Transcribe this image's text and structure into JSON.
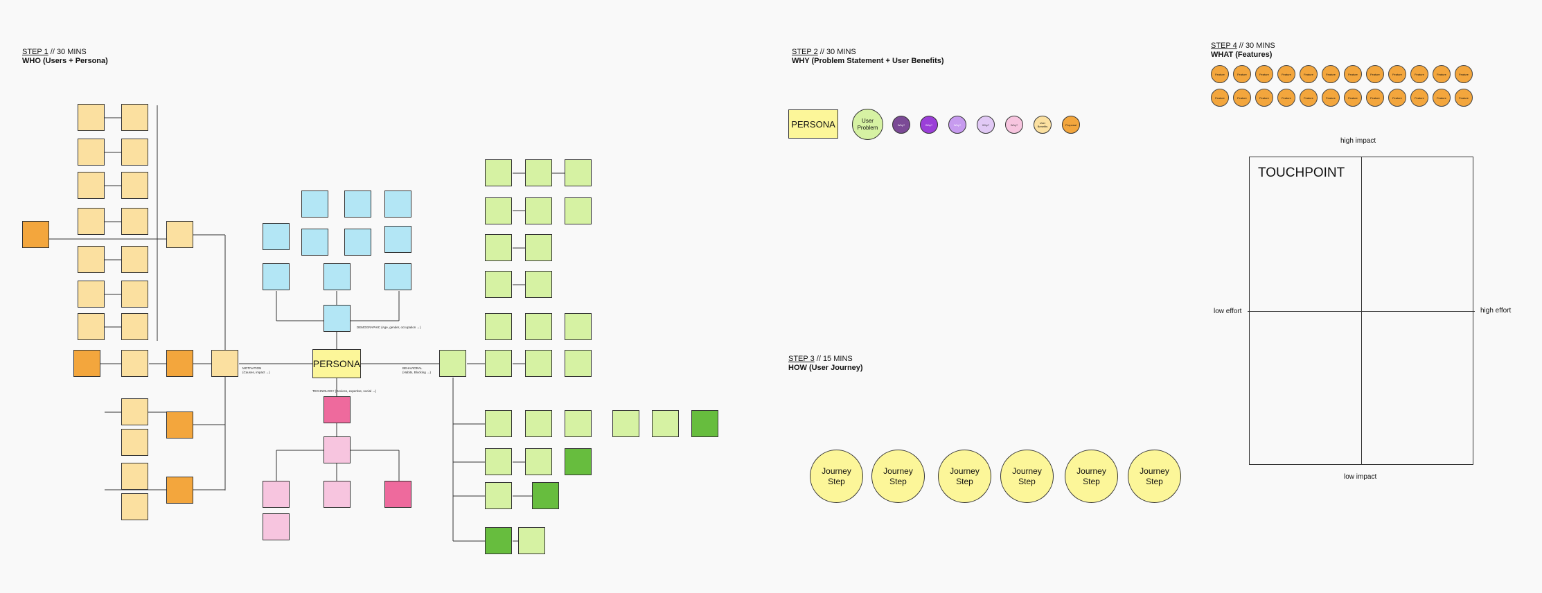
{
  "step1": {
    "num": "STEP 1",
    "time": " // 30 MINS",
    "title": "WHO (Users + Persona)"
  },
  "step2": {
    "num": "STEP 2",
    "time": " // 30 MINS",
    "title": "WHY (Problem Statement + User Benefits)"
  },
  "step3": {
    "num": "STEP 3",
    "time": " // 15 MINS",
    "title": "HOW (User Journey)"
  },
  "step4": {
    "num": "STEP 4",
    "time": " // 30 MINS",
    "title": "WHAT (Features)"
  },
  "persona_label": "PERSONA",
  "branches": {
    "demographic": "DEMOGRAPHIC (Age, gender, occupation →)",
    "motivation_1": "MOTIVATION",
    "motivation_2": "(Causes, impact →)",
    "behavioral_1": "BEHAVIORAL",
    "behavioral_2": "(Habits, Blocking →)",
    "technology": "TECHNOLOGY (Devices, expertise, social →)"
  },
  "why": {
    "persona": "PERSONA",
    "user_problem": "User Problem",
    "why_label": "Why?",
    "benefits": "User Benefits",
    "proposal": "Proposal"
  },
  "feature_label": "Feature",
  "journey_label": "Journey Step",
  "matrix": {
    "title": "TOUCHPOINT",
    "top": "high impact",
    "bottom": "low impact",
    "left": "low effort",
    "right": "high effort"
  },
  "colors": {
    "orange": "#f3a63d",
    "peach": "#fbe0a0",
    "blue": "#b3e6f5",
    "pink": "#ee6a9d",
    "light_pink": "#f7c5df",
    "lime": "#d6f2a3",
    "green": "#67bd3e",
    "yellow": "#fcf699",
    "purple_dark": "#7b4a96",
    "purple": "#9b3fd8",
    "lavender": "#c79bef",
    "lilac": "#e1c9f5"
  }
}
